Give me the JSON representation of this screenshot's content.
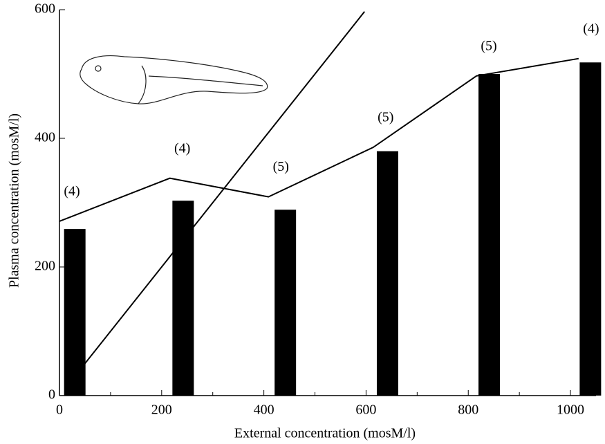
{
  "chart_data": {
    "type": "bar",
    "x_label": "External concentration (mosM/l)",
    "y_label": "Plasma concentration (mosM/l)",
    "xlim": [
      0,
      1050
    ],
    "ylim": [
      0,
      600
    ],
    "xticks": [
      0,
      200,
      400,
      600,
      800,
      1000
    ],
    "xminor_ticks": [
      100,
      300,
      500,
      700,
      900
    ],
    "yticks": [
      0,
      200,
      400,
      600
    ],
    "color": "#000000",
    "x": [
      30,
      242,
      442,
      642,
      841,
      1039
    ],
    "values": [
      259,
      303,
      289,
      380,
      500,
      518
    ],
    "series": [
      {
        "color": "#000000",
        "x": [
          0,
          216,
          409,
          614,
          816,
          1016
        ],
        "values": [
          271,
          338,
          309,
          386,
          497,
          524
        ],
        "labels": [
          "(4)",
          "(4)",
          "(5)",
          "(5)",
          "(5)",
          "(4)"
        ]
      },
      {
        "color": "#000000",
        "x": [
          15,
          597
        ],
        "values": [
          15,
          597
        ]
      }
    ]
  }
}
